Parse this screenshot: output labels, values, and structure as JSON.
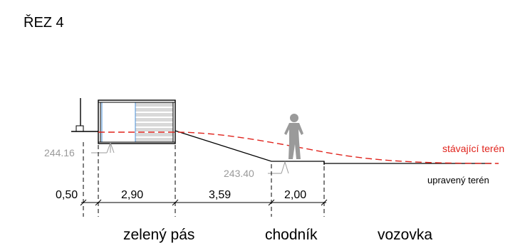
{
  "title": "ŘEZ 4",
  "levels": [
    {
      "id": "level-1",
      "text": "244.16"
    },
    {
      "id": "level-2",
      "text": "243.40"
    }
  ],
  "legend": {
    "existing": "stávající terén",
    "modified": "upravený terén"
  },
  "dimensions": [
    "0,50",
    "2,90",
    "3,59",
    "2,00"
  ],
  "zones": [
    "zelený pás",
    "chodník",
    "vozovka"
  ],
  "colors": {
    "existing_terrain": "#e0231c",
    "modified_terrain": "#000000",
    "level_marker": "#9a9a9a",
    "person": "#9a9a9a",
    "box_stripes": "#c8c8c8",
    "box_inner_outline": "#4a90d9"
  }
}
